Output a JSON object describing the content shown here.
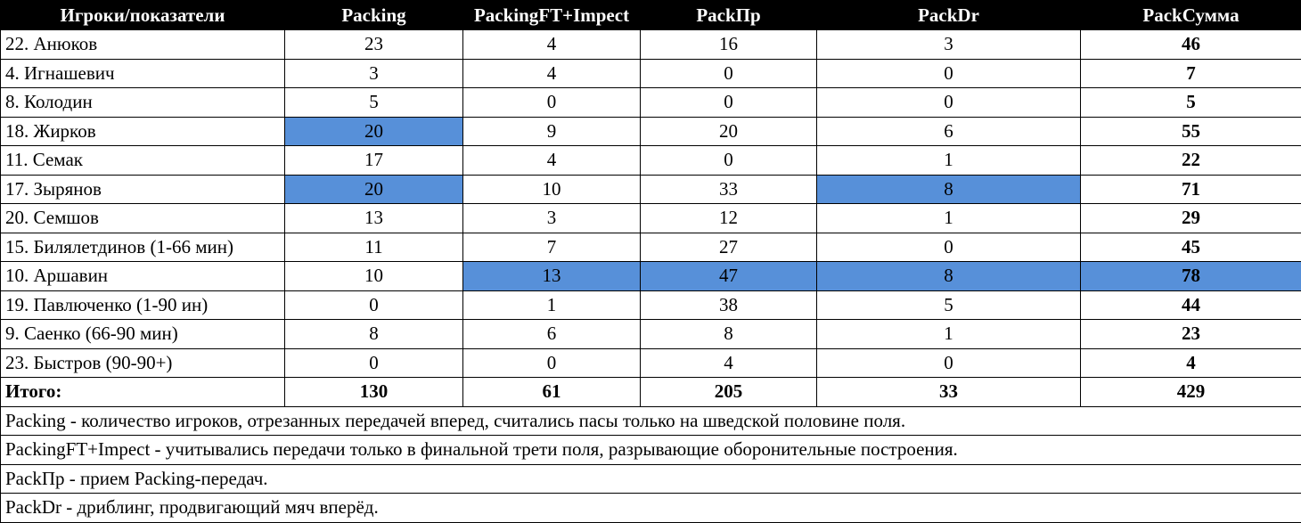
{
  "header": [
    "Игроки/показатели",
    "Packing",
    "PackingFT+Impect",
    "PackПр",
    "PackDr",
    "PackСумма"
  ],
  "highlight_color": "#5790d9",
  "rows": [
    {
      "player": "22. Анюков",
      "cells": [
        {
          "v": "23"
        },
        {
          "v": "4"
        },
        {
          "v": "16"
        },
        {
          "v": "3"
        },
        {
          "v": "46"
        }
      ]
    },
    {
      "player": "4. Игнашевич",
      "cells": [
        {
          "v": "3"
        },
        {
          "v": "4"
        },
        {
          "v": "0"
        },
        {
          "v": "0"
        },
        {
          "v": "7"
        }
      ]
    },
    {
      "player": "8. Колодин",
      "cells": [
        {
          "v": "5"
        },
        {
          "v": "0"
        },
        {
          "v": "0"
        },
        {
          "v": "0"
        },
        {
          "v": "5"
        }
      ]
    },
    {
      "player": "18. Жирков",
      "cells": [
        {
          "v": "20",
          "hl": true
        },
        {
          "v": "9"
        },
        {
          "v": "20"
        },
        {
          "v": "6"
        },
        {
          "v": "55"
        }
      ]
    },
    {
      "player": "11. Семак",
      "cells": [
        {
          "v": "17"
        },
        {
          "v": "4"
        },
        {
          "v": "0"
        },
        {
          "v": "1"
        },
        {
          "v": "22"
        }
      ]
    },
    {
      "player": "17. Зырянов",
      "cells": [
        {
          "v": "20",
          "hl": true
        },
        {
          "v": "10"
        },
        {
          "v": "33"
        },
        {
          "v": "8",
          "hl": true
        },
        {
          "v": "71"
        }
      ]
    },
    {
      "player": "20. Семшов",
      "cells": [
        {
          "v": "13"
        },
        {
          "v": "3"
        },
        {
          "v": "12"
        },
        {
          "v": "1"
        },
        {
          "v": "29"
        }
      ]
    },
    {
      "player": "15. Билялетдинов (1-66 мин)",
      "cells": [
        {
          "v": "11"
        },
        {
          "v": "7"
        },
        {
          "v": "27"
        },
        {
          "v": "0"
        },
        {
          "v": "45"
        }
      ]
    },
    {
      "player": "10. Аршавин",
      "cells": [
        {
          "v": "10"
        },
        {
          "v": "13",
          "hl": true
        },
        {
          "v": "47",
          "hl": true
        },
        {
          "v": "8",
          "hl": true
        },
        {
          "v": "78",
          "hl": true
        }
      ]
    },
    {
      "player": "19. Павлюченко (1-90 ин)",
      "cells": [
        {
          "v": "0"
        },
        {
          "v": "1"
        },
        {
          "v": "38"
        },
        {
          "v": "5"
        },
        {
          "v": "44"
        }
      ]
    },
    {
      "player": "9. Саенко (66-90 мин)",
      "cells": [
        {
          "v": "8"
        },
        {
          "v": "6"
        },
        {
          "v": "8"
        },
        {
          "v": "1"
        },
        {
          "v": "23"
        }
      ]
    },
    {
      "player": "23. Быстров (90-90+)",
      "cells": [
        {
          "v": "0"
        },
        {
          "v": "0"
        },
        {
          "v": "4"
        },
        {
          "v": "0"
        },
        {
          "v": "4"
        }
      ]
    }
  ],
  "total": {
    "label": "Итого:",
    "values": [
      "130",
      "61",
      "205",
      "33",
      "429"
    ]
  },
  "notes": [
    "Packing -  количество игроков, отрезанных передачей вперед, считались пасы только на шведской половине поля.",
    "PackingFT+Impect - учитывались передачи только в финальной трети поля, разрывающие оборонительные построения.",
    "PackПр - прием Packing-передач.",
    "PackDr - дриблинг, продвигающий мяч вперёд."
  ]
}
